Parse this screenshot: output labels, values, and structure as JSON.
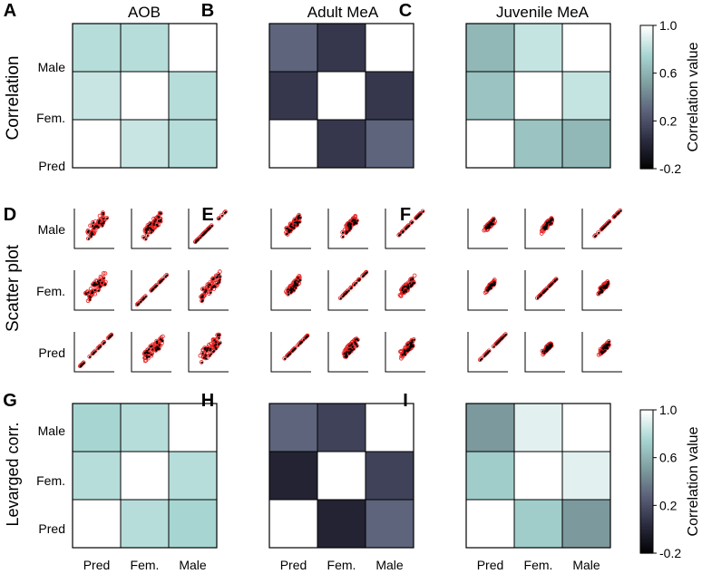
{
  "panel_letters": [
    "A",
    "B",
    "C",
    "D",
    "E",
    "F",
    "G",
    "H",
    "I"
  ],
  "column_titles": [
    "AOB",
    "Adult MeA",
    "Juvenile MeA"
  ],
  "row_titles": [
    "Correlation",
    "Scatter plot",
    "Levarged corr."
  ],
  "category_labels": [
    "Male",
    "Fem.",
    "Pred"
  ],
  "x_category_labels": [
    "Pred",
    "Fem.",
    "Male"
  ],
  "colorbar": {
    "label": "Correlation value",
    "ticks": [
      "1.0",
      "0.6",
      "0.2",
      "-0.2"
    ],
    "tick_values": [
      1.0,
      0.6,
      0.2,
      -0.2
    ],
    "range": [
      -0.2,
      1.0
    ],
    "colors": [
      "#000000",
      "#2a2a3e",
      "#5a5f78",
      "#7f9ea0",
      "#a7d6d2",
      "#ffffff"
    ]
  },
  "chart_data": [
    {
      "type": "heatmap",
      "panel": "A",
      "columns": [
        "Pred",
        "Fem.",
        "Male"
      ],
      "rows": [
        "Male",
        "Fem.",
        "Pred"
      ],
      "values": [
        [
          0.8,
          0.8,
          1.0
        ],
        [
          0.85,
          1.0,
          0.8
        ],
        [
          1.0,
          0.85,
          0.8
        ]
      ]
    },
    {
      "type": "heatmap",
      "panel": "B",
      "columns": [
        "Pred",
        "Fem.",
        "Male"
      ],
      "rows": [
        "Male",
        "Fem.",
        "Pred"
      ],
      "values": [
        [
          0.3,
          0.1,
          1.0
        ],
        [
          0.1,
          1.0,
          0.1
        ],
        [
          1.0,
          0.1,
          0.3
        ]
      ]
    },
    {
      "type": "heatmap",
      "panel": "C",
      "columns": [
        "Pred",
        "Fem.",
        "Male"
      ],
      "rows": [
        "Male",
        "Fem.",
        "Pred"
      ],
      "values": [
        [
          0.63,
          0.84,
          1.0
        ],
        [
          0.68,
          1.0,
          0.84
        ],
        [
          1.0,
          0.68,
          0.63
        ]
      ]
    },
    {
      "type": "scatter",
      "panel": "D",
      "rows": [
        "Male",
        "Fem.",
        "Pred"
      ],
      "columns": [
        "Pred",
        "Fem.",
        "Male"
      ]
    },
    {
      "type": "scatter",
      "panel": "E",
      "rows": [
        "Male",
        "Fem.",
        "Pred"
      ],
      "columns": [
        "Pred",
        "Fem.",
        "Male"
      ]
    },
    {
      "type": "scatter",
      "panel": "F",
      "rows": [
        "Male",
        "Fem.",
        "Pred"
      ],
      "columns": [
        "Pred",
        "Fem.",
        "Male"
      ]
    },
    {
      "type": "heatmap",
      "panel": "G",
      "columns": [
        "Pred",
        "Fem.",
        "Male"
      ],
      "rows": [
        "Male",
        "Fem.",
        "Pred"
      ],
      "values": [
        [
          0.76,
          0.8,
          1.0
        ],
        [
          0.8,
          1.0,
          0.8
        ],
        [
          1.0,
          0.8,
          0.76
        ]
      ]
    },
    {
      "type": "heatmap",
      "panel": "H",
      "columns": [
        "Pred",
        "Fem.",
        "Male"
      ],
      "rows": [
        "Male",
        "Fem.",
        "Pred"
      ],
      "values": [
        [
          0.3,
          0.15,
          1.0
        ],
        [
          0.0,
          1.0,
          0.15
        ],
        [
          1.0,
          0.0,
          0.3
        ]
      ]
    },
    {
      "type": "heatmap",
      "panel": "I",
      "columns": [
        "Pred",
        "Fem.",
        "Male"
      ],
      "rows": [
        "Male",
        "Fem.",
        "Pred"
      ],
      "values": [
        [
          0.5,
          0.92,
          1.0
        ],
        [
          0.72,
          1.0,
          0.92
        ],
        [
          1.0,
          0.72,
          0.5
        ]
      ]
    }
  ]
}
